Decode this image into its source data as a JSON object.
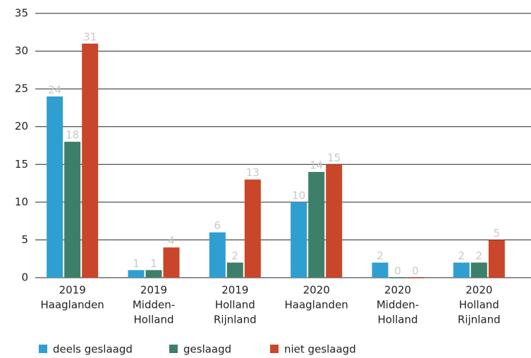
{
  "chart_data": {
    "type": "bar",
    "categories": [
      [
        "2019",
        "Haaglanden"
      ],
      [
        "2019",
        "Midden-",
        "Holland"
      ],
      [
        "2019",
        "Holland",
        "Rijnland"
      ],
      [
        "2020",
        "Haaglanden"
      ],
      [
        "2020",
        "Midden-",
        "Holland"
      ],
      [
        "2020",
        "Holland",
        "Rijnland"
      ]
    ],
    "series": [
      {
        "name": "deels geslaagd",
        "color": "#2f9fd1",
        "values": [
          24,
          1,
          6,
          10,
          2,
          2
        ]
      },
      {
        "name": "geslaagd",
        "color": "#3e7f69",
        "values": [
          18,
          1,
          2,
          14,
          0,
          2
        ]
      },
      {
        "name": "niet geslaagd",
        "color": "#c9462a",
        "values": [
          31,
          4,
          13,
          15,
          0,
          5
        ]
      }
    ],
    "ylim": [
      0,
      35
    ],
    "yticks": [
      0,
      5,
      10,
      15,
      20,
      25,
      30,
      35
    ],
    "grid": true,
    "legend": "bottom"
  }
}
